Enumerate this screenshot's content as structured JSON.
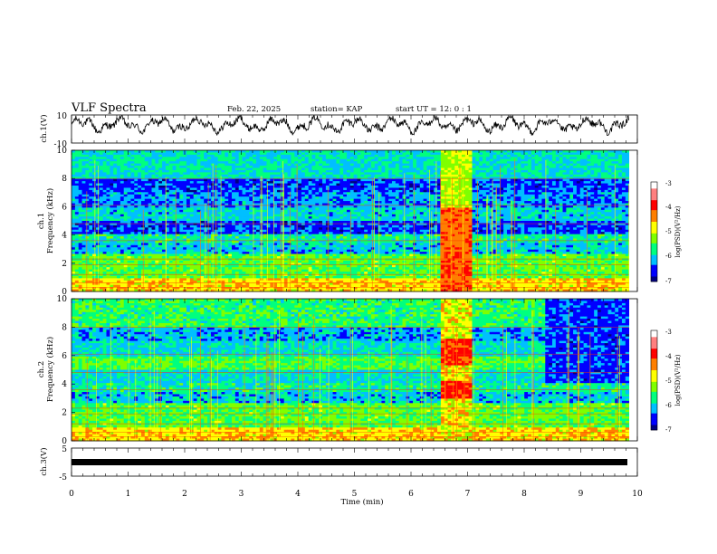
{
  "header": {
    "title": "VLF Spectra",
    "date": "Feb. 22, 2025",
    "station": "station= KAP",
    "start_ut": "start  UT =   12: 0  : 1"
  },
  "colors": {
    "colormap": [
      "#00007f",
      "#0000ff",
      "#00bfff",
      "#00ff7f",
      "#7fff00",
      "#ffff00",
      "#ff7f00",
      "#ff0000",
      "#ff7f7f",
      "#ffffff"
    ]
  },
  "chart_data": [
    {
      "type": "line",
      "panel": "ch1-waveform",
      "ylabel": "ch.1(V)",
      "ylim": [
        -10,
        10
      ],
      "yticks": [
        "10",
        "-10"
      ],
      "xlim": [
        0,
        10
      ],
      "description_values": "noisy envelope oscillating roughly between -5 and 10 V over 0–9.85 min"
    },
    {
      "type": "heatmap",
      "panel": "ch1-spectrogram",
      "ylabel": "ch.1\nFrequency (kHz)",
      "ylabel_lines": [
        "ch.1",
        "Frequency (kHz)"
      ],
      "ylim": [
        0,
        10
      ],
      "yticks": [
        "0",
        "2",
        "4",
        "6",
        "8",
        "10"
      ],
      "xlim": [
        0,
        10
      ],
      "data_extent_min": [
        0,
        9.85
      ],
      "colorbar": {
        "label": "log(PSD)(V²/Hz)",
        "range": [
          -7,
          -3
        ],
        "ticks": [
          "-3",
          "-4",
          "-5",
          "-6",
          "-7"
        ]
      },
      "features": [
        {
          "kind": "broadband-burst",
          "t_start": 6.5,
          "t_end": 7.1
        }
      ]
    },
    {
      "type": "heatmap",
      "panel": "ch2-spectrogram",
      "ylabel": "ch.2\nFrequency (kHz)",
      "ylabel_lines": [
        "ch.2",
        "Frequency (kHz)"
      ],
      "ylim": [
        0,
        10
      ],
      "yticks": [
        "0",
        "2",
        "4",
        "6",
        "8",
        "10"
      ],
      "xlim": [
        0,
        10
      ],
      "data_extent_min": [
        0,
        9.85
      ],
      "colorbar": {
        "label": "log(PSD)(V²/Hz)",
        "range": [
          -7,
          -3
        ],
        "ticks": [
          "-3",
          "-4",
          "-5",
          "-6",
          "-7"
        ]
      },
      "features": [
        {
          "kind": "broadband-burst",
          "t_start": 6.5,
          "t_end": 7.1
        },
        {
          "kind": "quiet-high-band",
          "t_start": 8.4,
          "t_end": 9.85,
          "f_start": 4,
          "f_end": 10
        }
      ]
    },
    {
      "type": "line",
      "panel": "ch3-waveform",
      "ylabel": "ch.3(V)",
      "ylim": [
        -5,
        5
      ],
      "yticks": [
        "5",
        "-5"
      ],
      "xlim": [
        0,
        10
      ],
      "values_constant": 0,
      "description_values": "saturated thick flat trace near 0 V"
    }
  ],
  "xaxis": {
    "label": "Time  (min)",
    "ticks": [
      "0",
      "1",
      "2",
      "3",
      "4",
      "5",
      "6",
      "7",
      "8",
      "9",
      "10"
    ]
  }
}
